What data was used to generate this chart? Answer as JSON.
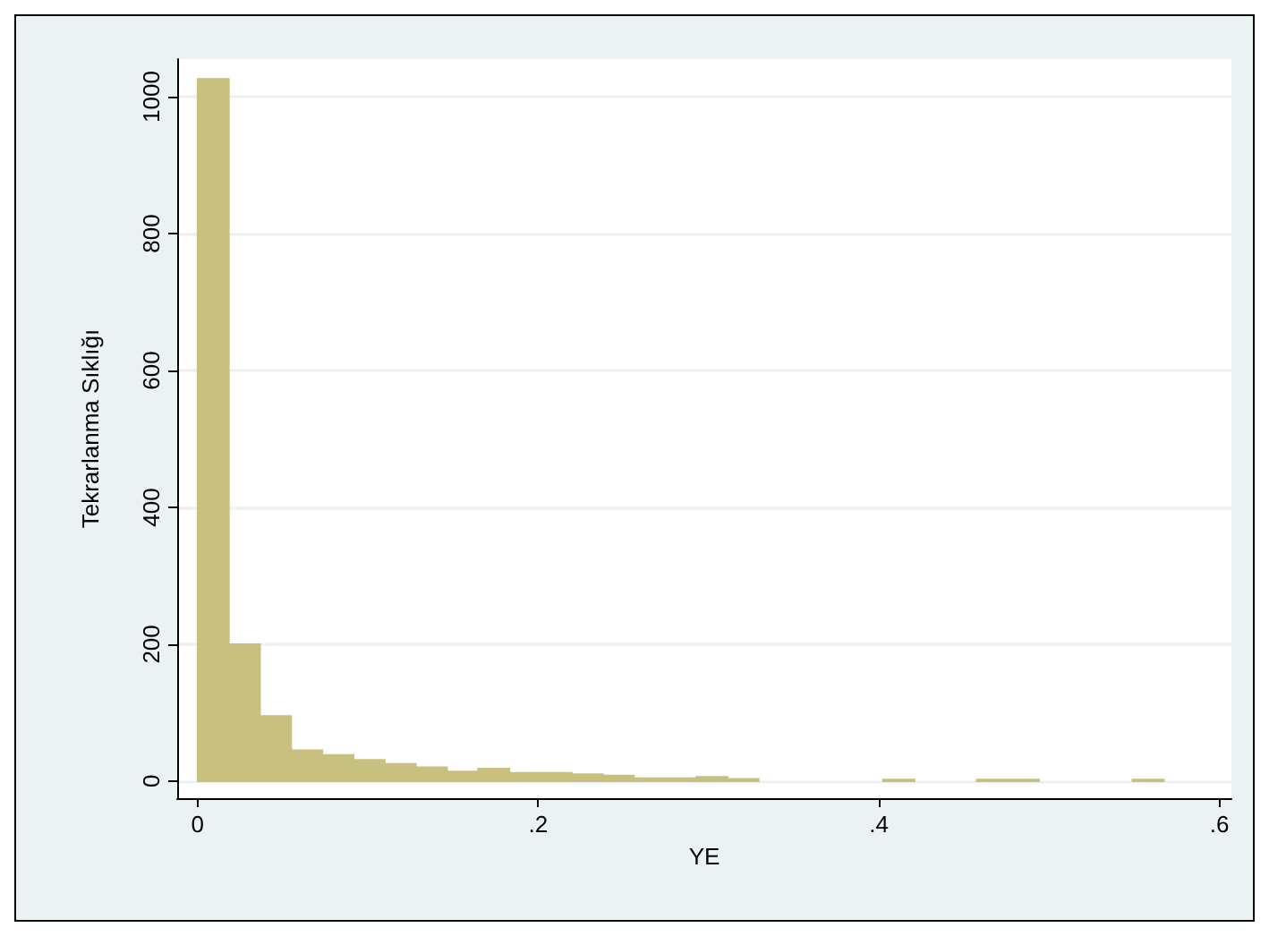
{
  "chart_data": {
    "type": "histogram",
    "xlabel": "YE",
    "ylabel": "Tekrarlanma Sıklığı",
    "color": "#c8c07e",
    "bins": [
      0,
      0.0183,
      0.0366,
      0.0549,
      0.0732,
      0.0915,
      0.1098,
      0.1281,
      0.1464,
      0.1647,
      0.183,
      0.2013,
      0.2196,
      0.2379,
      0.2562,
      0.2745,
      0.2928,
      0.3111,
      0.3294,
      0.3477,
      0.366,
      0.3843,
      0.4026,
      0.4209,
      0.4392,
      0.4575,
      0.4758,
      0.4941,
      0.5124,
      0.5307,
      0.549,
      0.5673
    ],
    "values": [
      1026,
      200,
      95,
      45,
      38,
      31,
      25,
      20,
      14,
      18,
      12,
      12,
      10,
      8,
      4,
      4,
      6,
      3,
      0,
      0,
      0,
      0,
      2,
      0,
      0,
      2,
      2,
      0,
      0,
      0,
      2
    ],
    "xlim": [
      -0.012,
      0.607
    ],
    "ylim": [
      -25,
      1055
    ],
    "xticks": [
      {
        "value": 0,
        "label": "0"
      },
      {
        "value": 0.2,
        "label": ".2"
      },
      {
        "value": 0.4,
        "label": ".4"
      },
      {
        "value": 0.6,
        "label": ".6"
      }
    ],
    "yticks": [
      0,
      200,
      400,
      600,
      800,
      1000
    ],
    "grid": "y"
  }
}
